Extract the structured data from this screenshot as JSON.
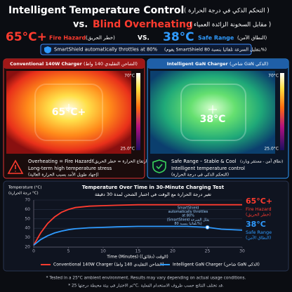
{
  "header": {
    "title": "Intelligent Temperature Control",
    "title_ar": "( التحكم الذكي في درجة الحرارة )",
    "vs": "vs.",
    "subtitle": "Blind Overheating",
    "subtitle_ar": "( مقابل السخونة الزائدة العمياء )",
    "hot_temp": "65°C+",
    "hot_label": "Fire Hazard",
    "hot_label_ar": "(خطر الحريق)",
    "versus": "VS.",
    "cool_temp": "38°C",
    "cool_label": "Safe Range",
    "cool_label_ar": "(النطاق الآمن)",
    "banner": "SmartShield automatically throttles at 80%",
    "banner_ar": "(يقوم SmartShield بتقليل السرعة تلقائيا بنسبة 80%)"
  },
  "panels": [
    {
      "title": "Conventional 140W Charger",
      "title_ar": "(الشاحن التقليدي 140 واط)",
      "reading": "65°C+",
      "scale_max": "70°C",
      "scale_min": "25.0°C",
      "line1": "Overheating = Fire Hazard!",
      "line1_ar": "(ارتفاع الحرارة = خطر الحريق)",
      "line2": "Long-term high temperature stress",
      "line3": "(إجهاد طويل الأمد بسبب الحرارة العالية)"
    },
    {
      "title": "Intelligent GaN Charger",
      "title_ar": "(شاحن GaN الذكي)",
      "reading": "38°C",
      "scale_max": "70°C",
      "scale_min": "25.0°C",
      "line1": "Safe Range – Stable & Cool",
      "line1_ar": "(نطاق آمن - مستقر وبارد)",
      "line2": "Intelligent temperature control",
      "line3": "(التحكم الذكي في درجة الحرارة)"
    }
  ],
  "chart_data": {
    "type": "line",
    "title": "Temperature Over Time in 30-Minute Charging Test",
    "subtitle": "تغير درجة الحرارة مع الوقت في اختبار الشحن لمدة 30 دقيقة",
    "y_label": "Temperature (°C)",
    "y_label_ar": "(درجة الحرارة °C)",
    "x_label": "Time (Minutes) (الوقت (دقائق))",
    "x": [
      0,
      1,
      2,
      3,
      4,
      5,
      6,
      8,
      10,
      12,
      15,
      18,
      20,
      22,
      25,
      27,
      30
    ],
    "series": [
      {
        "name": "Conventional 140W Charger (الشاحن التقليدي 140 واط)",
        "color": "#ff3b2f",
        "values": [
          22,
          35,
          45,
          52,
          57,
          60,
          62,
          63.5,
          64,
          64.5,
          65,
          65,
          65,
          65,
          65,
          65,
          65
        ]
      },
      {
        "name": "Intelligent GaN Charger (شاحن GaN الذكي)",
        "color": "#2f9bff",
        "values": [
          22,
          28,
          32,
          35,
          37,
          38.5,
          39.5,
          40.5,
          41,
          41.5,
          42,
          42,
          42,
          42,
          41,
          39,
          38
        ]
      }
    ],
    "xlim": [
      0,
      30
    ],
    "xticks": [
      0,
      5,
      10,
      15,
      20,
      25,
      30
    ],
    "ylim": [
      20,
      70
    ],
    "yticks": [
      20,
      30,
      40,
      50,
      60,
      70
    ],
    "grid": true,
    "annotation": [
      "SmartShield",
      "automatically throttles",
      "at 80%",
      "(SmartShield يقلل السرعة",
      "تلقائيا بنسبة 80%)"
    ],
    "end_labels": [
      {
        "temp": "65°C+",
        "label": "Fire Hazard",
        "label_ar": "(خطر الحريق)"
      },
      {
        "temp": "38°C",
        "label": "Safe Range",
        "label_ar": "(النطاق الآمن)"
      }
    ]
  },
  "footer": {
    "note": "* Tested in a 25°C ambient environment. Results may vary depending on actual usage conditions.",
    "note_ar": "* تم الاختبار في بيئة محيطة درجتها 25°C. قد تختلف النتائج حسب ظروف الاستخدام الفعلية."
  }
}
